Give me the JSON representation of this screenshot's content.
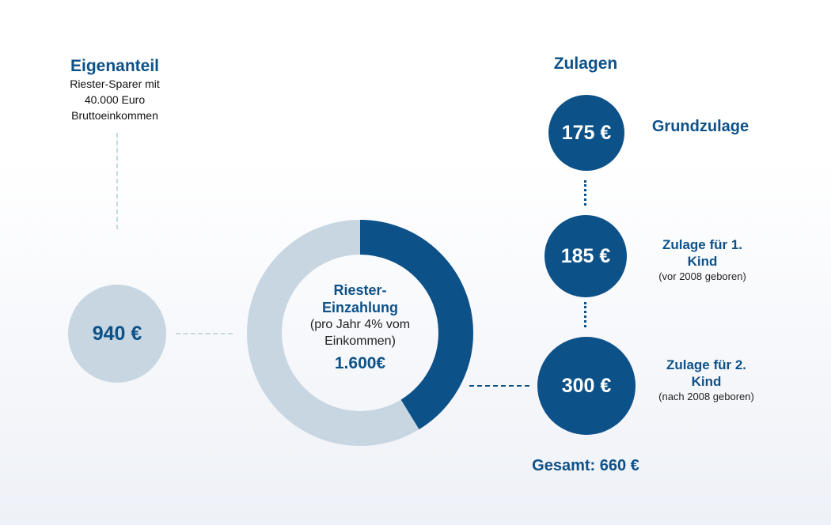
{
  "eigenanteil": {
    "title": "Eigenanteil",
    "description_lines": [
      "Riester-Sparer mit",
      "40.000 Euro",
      "Bruttoeinkommen"
    ],
    "value": "940 €"
  },
  "donut": {
    "title_lines": [
      "Riester-",
      "Einzahlung"
    ],
    "subtitle_lines": [
      "(pro Jahr 4% vom",
      "Einkommen)"
    ],
    "value": "1.600€",
    "share_zulagen": 0.4125,
    "colors": {
      "zulagen": "#0d5189",
      "eigenanteil": "#c7d6e1"
    }
  },
  "zulagen": {
    "title": "Zulagen",
    "items": [
      {
        "value": "175 €",
        "label_lines": [
          "Grundzulage"
        ],
        "note": ""
      },
      {
        "value": "185 €",
        "label_lines": [
          "Zulage für 1.",
          "Kind"
        ],
        "note": "(vor 2008 geboren)"
      },
      {
        "value": "300 €",
        "label_lines": [
          "Zulage für 2.",
          "Kind"
        ],
        "note": "(nach 2008 geboren)"
      }
    ],
    "total": "Gesamt: 660 €"
  },
  "colors": {
    "primary": "#0d5189",
    "light": "#c7d6e1"
  }
}
